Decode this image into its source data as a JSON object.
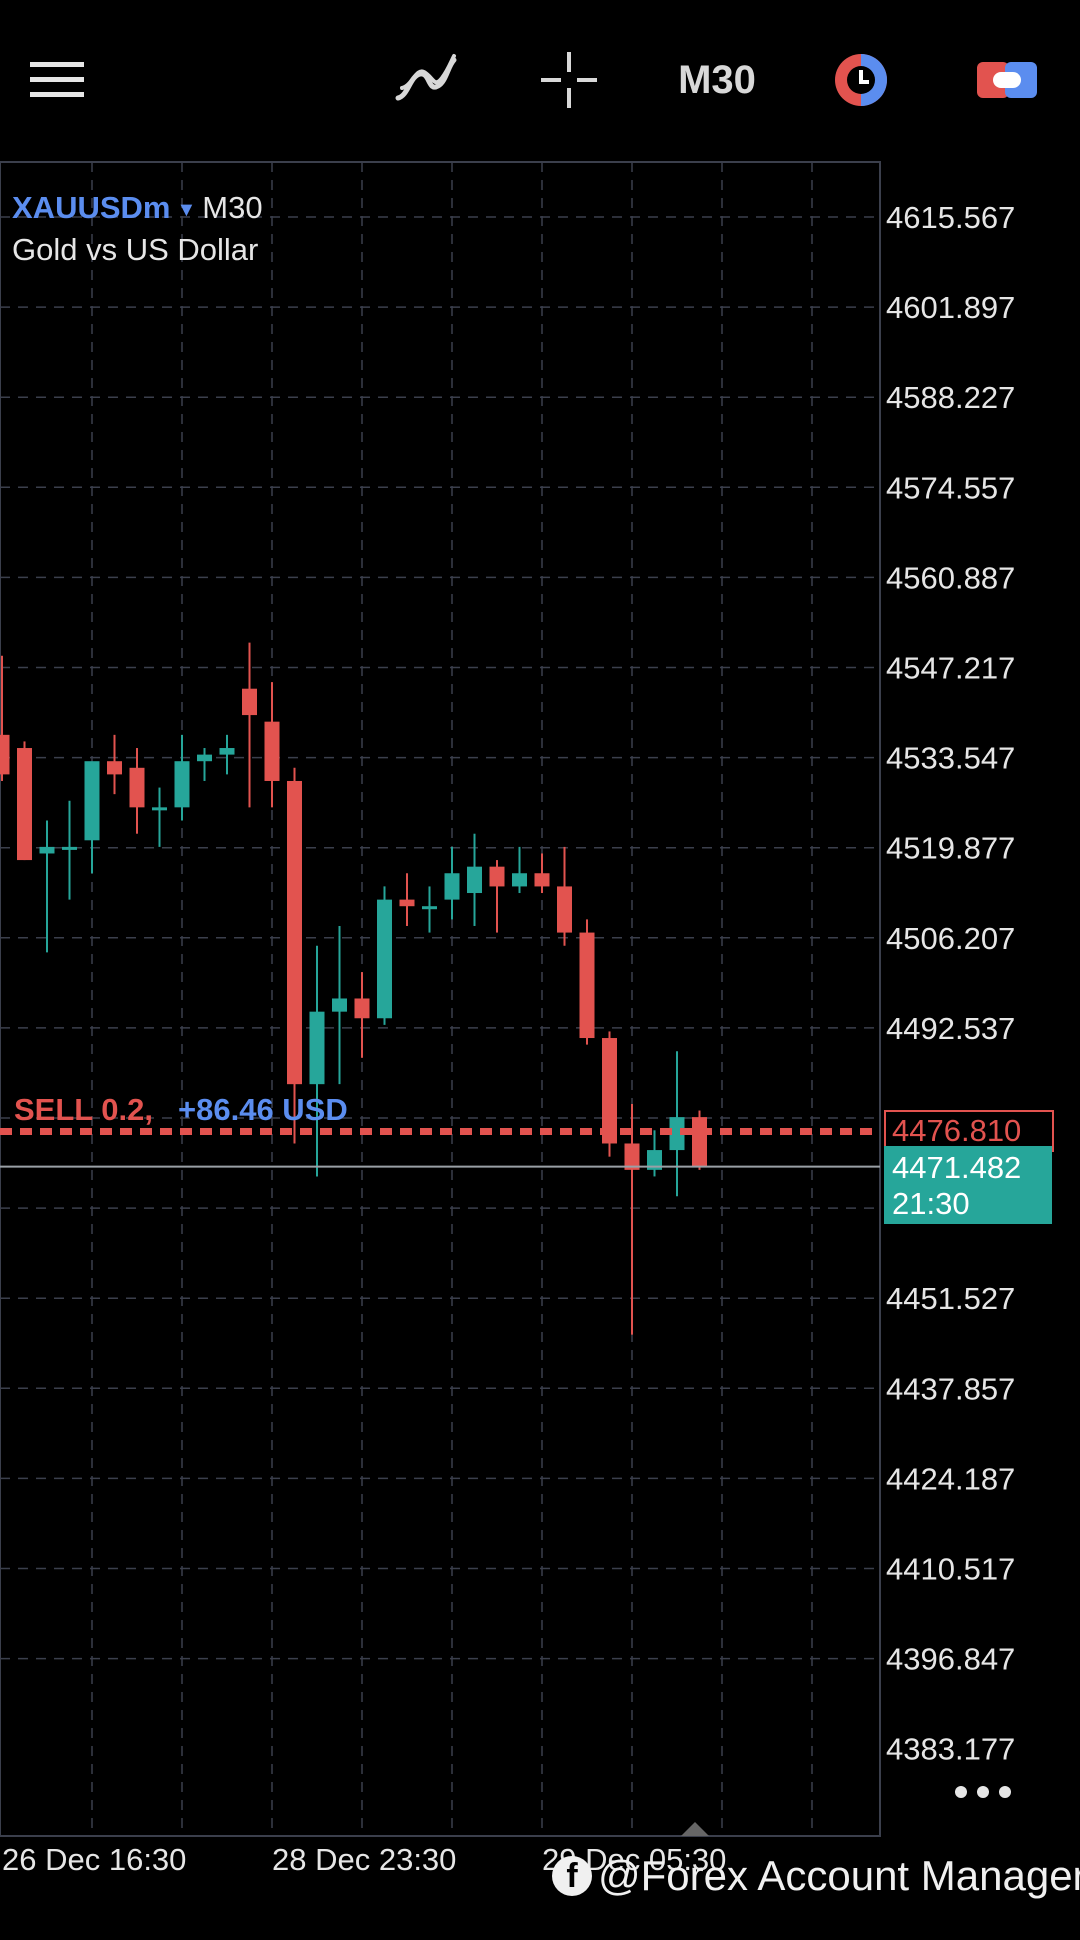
{
  "toolbar": {
    "menu_icon": "hamburger-menu-icon",
    "indicators_icon": "indicators-icon",
    "crosshair_icon": "crosshair-icon",
    "timeframe": "M30",
    "clock_icon": "trading-clock-icon",
    "trade_icon": "trade-toggle-icon"
  },
  "symbol": {
    "name": "XAUUSDm",
    "timeframe": "M30",
    "description": "Gold vs US Dollar"
  },
  "order": {
    "label": "SELL 0.2,",
    "profit": "+86.46 USD"
  },
  "price_tags": {
    "bid": "4476.810",
    "last_price": "4471.482",
    "last_time": "21:30"
  },
  "watermark": "@Forex Account Manager",
  "colors": {
    "bull": "#26a69a",
    "bear": "#e2534f",
    "grid": "#3b3f4c",
    "accent": "#5b8def"
  },
  "chart_data": {
    "type": "candlestick",
    "symbol": "XAUUSDm",
    "timeframe": "M30",
    "price_axis": [
      "4615.567",
      "4601.897",
      "4588.227",
      "4574.557",
      "4560.887",
      "4547.217",
      "4533.547",
      "4519.877",
      "4506.207",
      "4492.537",
      "4476.810",
      "4451.527",
      "4437.857",
      "4424.187",
      "4410.517",
      "4396.847",
      "4383.177"
    ],
    "time_axis": [
      "26 Dec 16:30",
      "28 Dec 23:30",
      "29 Dec 05:30"
    ],
    "ylim": [
      4375.0,
      4628.0
    ],
    "candles": [
      {
        "o": 4537.0,
        "h": 4549.0,
        "l": 4530.0,
        "c": 4531.0
      },
      {
        "o": 4535.0,
        "h": 4536.0,
        "l": 4518.0,
        "c": 4518.0
      },
      {
        "o": 4519.0,
        "h": 4524.0,
        "l": 4504.0,
        "c": 4520.0
      },
      {
        "o": 4520.0,
        "h": 4527.0,
        "l": 4512.0,
        "c": 4520.0
      },
      {
        "o": 4521.0,
        "h": 4531.0,
        "l": 4516.0,
        "c": 4533.0
      },
      {
        "o": 4533.0,
        "h": 4537.0,
        "l": 4528.0,
        "c": 4531.0
      },
      {
        "o": 4532.0,
        "h": 4535.0,
        "l": 4522.0,
        "c": 4526.0
      },
      {
        "o": 4526.0,
        "h": 4529.0,
        "l": 4520.0,
        "c": 4526.0
      },
      {
        "o": 4526.0,
        "h": 4537.0,
        "l": 4524.0,
        "c": 4533.0
      },
      {
        "o": 4533.0,
        "h": 4535.0,
        "l": 4530.0,
        "c": 4534.0
      },
      {
        "o": 4534.0,
        "h": 4537.0,
        "l": 4531.0,
        "c": 4535.0
      },
      {
        "o": 4544.0,
        "h": 4551.0,
        "l": 4526.0,
        "c": 4540.0
      },
      {
        "o": 4539.0,
        "h": 4545.0,
        "l": 4526.0,
        "c": 4530.0
      },
      {
        "o": 4530.0,
        "h": 4532.0,
        "l": 4475.0,
        "c": 4484.0
      },
      {
        "o": 4484.0,
        "h": 4505.0,
        "l": 4470.0,
        "c": 4495.0
      },
      {
        "o": 4495.0,
        "h": 4508.0,
        "l": 4484.0,
        "c": 4497.0
      },
      {
        "o": 4497.0,
        "h": 4501.0,
        "l": 4488.0,
        "c": 4494.0
      },
      {
        "o": 4494.0,
        "h": 4514.0,
        "l": 4493.0,
        "c": 4512.0
      },
      {
        "o": 4512.0,
        "h": 4516.0,
        "l": 4508.0,
        "c": 4511.0
      },
      {
        "o": 4511.0,
        "h": 4514.0,
        "l": 4507.0,
        "c": 4511.0
      },
      {
        "o": 4512.0,
        "h": 4520.0,
        "l": 4509.0,
        "c": 4516.0
      },
      {
        "o": 4513.0,
        "h": 4522.0,
        "l": 4508.0,
        "c": 4517.0
      },
      {
        "o": 4517.0,
        "h": 4518.0,
        "l": 4507.0,
        "c": 4514.0
      },
      {
        "o": 4514.0,
        "h": 4520.0,
        "l": 4513.0,
        "c": 4516.0
      },
      {
        "o": 4516.0,
        "h": 4519.0,
        "l": 4513.0,
        "c": 4514.0
      },
      {
        "o": 4514.0,
        "h": 4520.0,
        "l": 4505.0,
        "c": 4507.0
      },
      {
        "o": 4507.0,
        "h": 4509.0,
        "l": 4490.0,
        "c": 4491.0
      },
      {
        "o": 4491.0,
        "h": 4492.0,
        "l": 4473.0,
        "c": 4475.0
      },
      {
        "o": 4475.0,
        "h": 4481.0,
        "l": 4446.0,
        "c": 4471.0
      },
      {
        "o": 4471.0,
        "h": 4477.0,
        "l": 4470.0,
        "c": 4474.0
      },
      {
        "o": 4474.0,
        "h": 4489.0,
        "l": 4467.0,
        "c": 4479.0
      },
      {
        "o": 4479.0,
        "h": 4480.0,
        "l": 4471.0,
        "c": 4471.482
      }
    ],
    "bid_line": 4476.81,
    "last_line": 4471.482,
    "grid": true
  }
}
